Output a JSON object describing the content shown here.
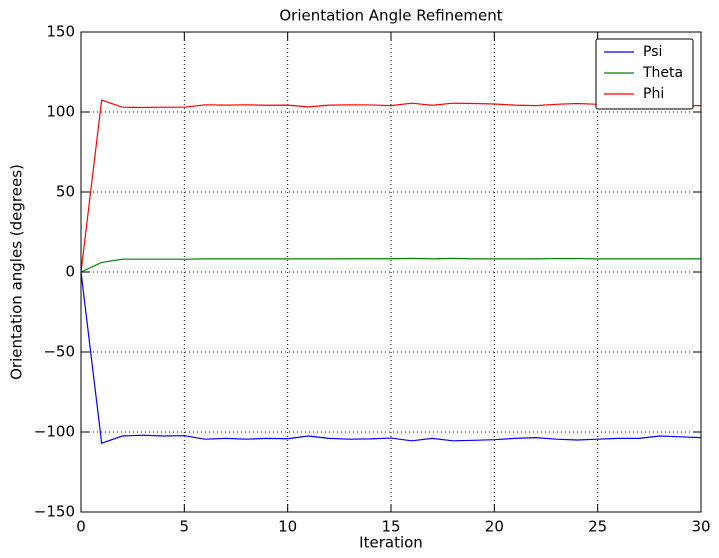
{
  "chart_data": {
    "type": "line",
    "title": "Orientation Angle Refinement",
    "xlabel": "Iteration",
    "ylabel": "Orientation angles (degrees)",
    "x": [
      0,
      1,
      2,
      3,
      4,
      5,
      6,
      7,
      8,
      9,
      10,
      11,
      12,
      13,
      14,
      15,
      16,
      17,
      18,
      19,
      20,
      21,
      22,
      23,
      24,
      25,
      26,
      27,
      28,
      29,
      30
    ],
    "series": [
      {
        "name": "Psi",
        "color": "#0000ff",
        "values": [
          0,
          -107,
          -102.5,
          -102,
          -102.5,
          -102.3,
          -104.5,
          -104,
          -104.5,
          -104,
          -104.2,
          -102.5,
          -104,
          -104.5,
          -104.3,
          -103.8,
          -105.5,
          -104,
          -105.5,
          -105.2,
          -104.8,
          -104,
          -103.5,
          -104.5,
          -105,
          -104.5,
          -104,
          -104,
          -102.5,
          -103,
          -103.5
        ]
      },
      {
        "name": "Theta",
        "color": "#008000",
        "values": [
          0,
          6,
          8,
          8,
          8,
          8,
          8.2,
          8.2,
          8.2,
          8.2,
          8.2,
          8.2,
          8.2,
          8.3,
          8.3,
          8.3,
          8.5,
          8.2,
          8.5,
          8.2,
          8.2,
          8.2,
          8.2,
          8.4,
          8.4,
          8.2,
          8.2,
          8.2,
          8.2,
          8.2,
          8.2
        ]
      },
      {
        "name": "Phi",
        "color": "#ff0000",
        "values": [
          0,
          107.5,
          103,
          102.8,
          103,
          103,
          104.5,
          104.3,
          104.5,
          104.2,
          104.3,
          103.2,
          104.3,
          104.5,
          104.4,
          104,
          105.5,
          104.2,
          105.5,
          105.3,
          105,
          104.3,
          104,
          104.8,
          105.3,
          104.8,
          104.5,
          104.5,
          104.3,
          104,
          104
        ]
      }
    ],
    "xlim": [
      0,
      30
    ],
    "xticks": [
      0,
      5,
      10,
      15,
      20,
      25,
      30
    ],
    "ylim": [
      -150,
      150
    ],
    "yticks": [
      {
        "value": -150,
        "label": "−150"
      },
      {
        "value": -100,
        "label": "−100"
      },
      {
        "value": -50,
        "label": "−50"
      },
      0,
      50,
      100,
      150
    ],
    "grid": true,
    "legend": "upper right"
  }
}
